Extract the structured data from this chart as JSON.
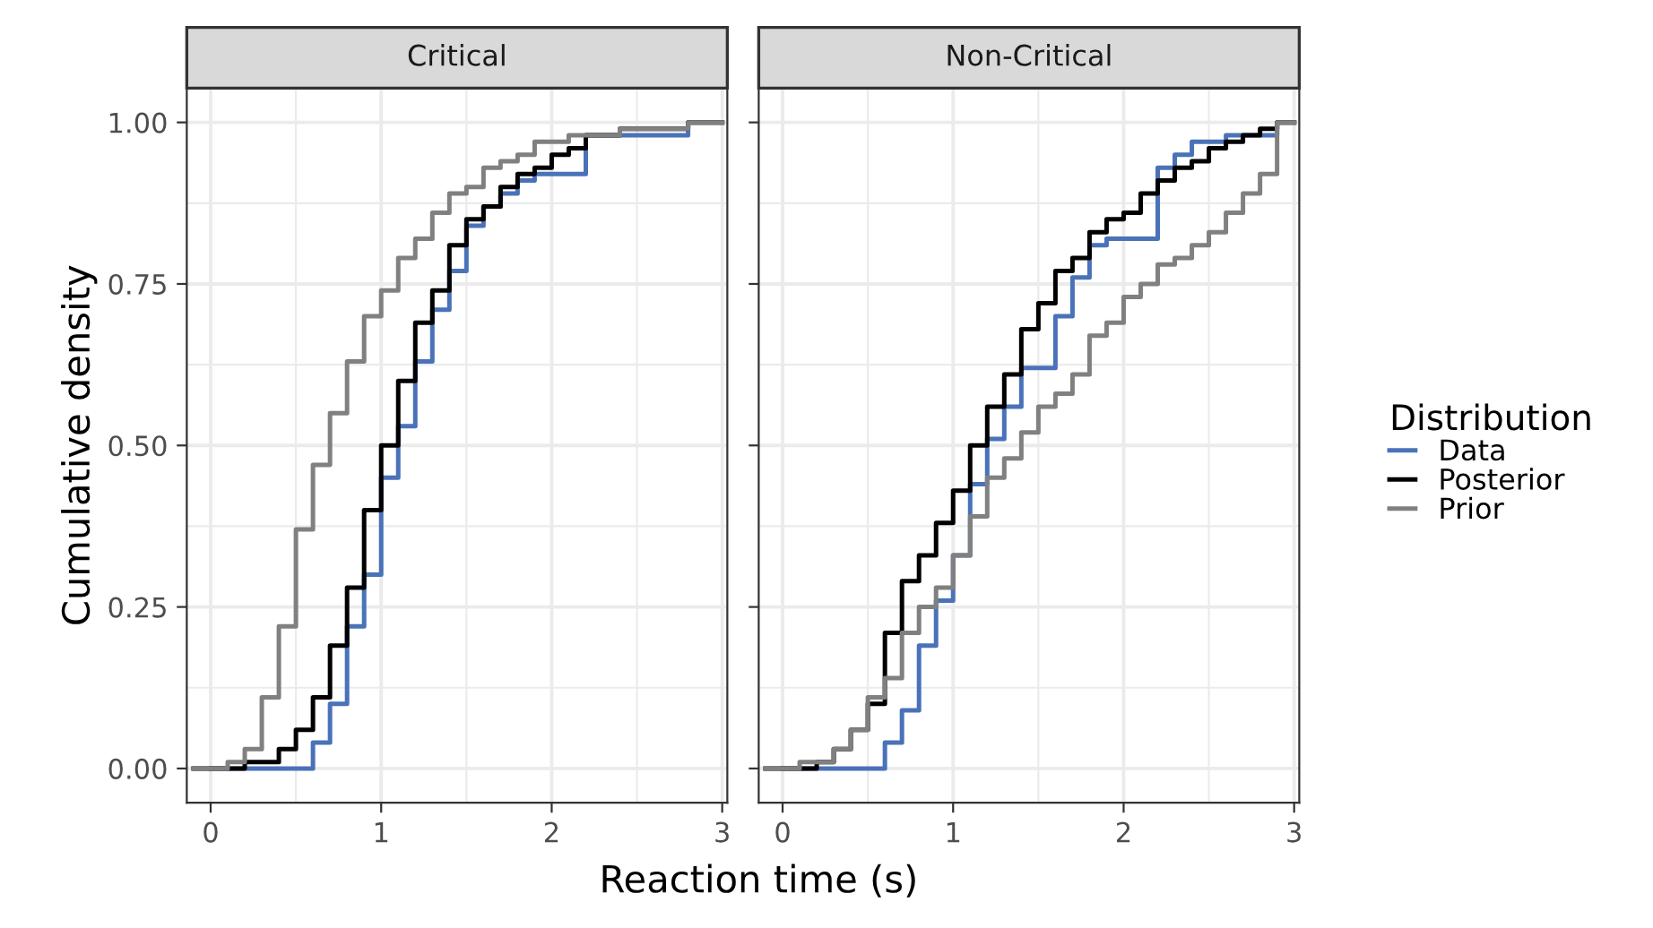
{
  "chart_data": [
    {
      "type": "step",
      "title": "Critical",
      "xlabel": "Reaction time (s)",
      "ylabel": "Cumulative density",
      "legend_title": "Distribution",
      "legend": "right",
      "grid": true,
      "line_style": "solid",
      "marker": "none",
      "x": [
        -0.1,
        0,
        0.1,
        0.2,
        0.3,
        0.4,
        0.5,
        0.6,
        0.7,
        0.8,
        0.9,
        1.0,
        1.1,
        1.2,
        1.3,
        1.4,
        1.5,
        1.6,
        1.7,
        1.8,
        1.9,
        2.0,
        2.1,
        2.2,
        2.3,
        2.4,
        2.5,
        2.6,
        2.7,
        2.8,
        2.9,
        3.0
      ],
      "xlim": [
        -0.14,
        3.03
      ],
      "xticks": [
        0,
        1,
        2,
        3
      ],
      "ylim": [
        -0.053,
        1.053
      ],
      "yticks": [
        {
          "value": 0,
          "label": "0.00"
        },
        {
          "value": 0.25,
          "label": "0.25"
        },
        {
          "value": 0.5,
          "label": "0.50"
        },
        {
          "value": 0.75,
          "label": "0.75"
        },
        {
          "value": 1,
          "label": "1.00"
        }
      ],
      "series": [
        {
          "name": "Data",
          "color": "#4a72b8",
          "values": [
            null,
            0,
            0,
            0,
            0,
            0,
            0,
            0.04,
            0.1,
            0.22,
            0.3,
            0.45,
            0.53,
            0.63,
            0.71,
            0.77,
            0.84,
            0.87,
            0.89,
            0.91,
            0.92,
            0.92,
            0.92,
            0.98,
            0.98,
            0.98,
            0.98,
            0.98,
            0.98,
            1.0,
            1.0,
            1.0
          ]
        },
        {
          "name": "Posterior",
          "color": "#000000",
          "values": [
            0,
            0,
            0,
            0.01,
            0.01,
            0.03,
            0.06,
            0.11,
            0.19,
            0.28,
            0.4,
            0.5,
            0.6,
            0.69,
            0.74,
            0.81,
            0.85,
            0.87,
            0.9,
            0.92,
            0.93,
            0.95,
            0.96,
            0.98,
            0.98,
            0.99,
            0.99,
            0.99,
            0.99,
            1.0,
            1.0,
            1.0
          ]
        },
        {
          "name": "Prior",
          "color": "#808080",
          "values": [
            0,
            0,
            0.01,
            0.03,
            0.11,
            0.22,
            0.37,
            0.47,
            0.55,
            0.63,
            0.7,
            0.74,
            0.79,
            0.82,
            0.86,
            0.89,
            0.9,
            0.93,
            0.94,
            0.95,
            0.97,
            0.97,
            0.98,
            0.98,
            0.98,
            0.99,
            0.99,
            0.99,
            0.99,
            1.0,
            1.0,
            1.0
          ]
        }
      ]
    },
    {
      "type": "step",
      "title": "Non-Critical",
      "grid": true,
      "line_style": "solid",
      "marker": "none",
      "tick_labels": "x",
      "x": [
        -0.1,
        0,
        0.1,
        0.2,
        0.3,
        0.4,
        0.5,
        0.6,
        0.7,
        0.8,
        0.9,
        1.0,
        1.1,
        1.2,
        1.3,
        1.4,
        1.5,
        1.6,
        1.7,
        1.8,
        1.9,
        2.0,
        2.1,
        2.2,
        2.3,
        2.4,
        2.5,
        2.6,
        2.7,
        2.8,
        2.9,
        3.0
      ],
      "xlim": [
        -0.14,
        3.03
      ],
      "xticks": [
        0,
        1,
        2,
        3
      ],
      "ylim": [
        -0.053,
        1.053
      ],
      "yticks": [
        {
          "value": 0,
          "label": null
        },
        {
          "value": 0.25,
          "label": null
        },
        {
          "value": 0.5,
          "label": null
        },
        {
          "value": 0.75,
          "label": null
        },
        {
          "value": 1,
          "label": null
        }
      ],
      "series": [
        {
          "color": "#4a72b8",
          "values": [
            null,
            0,
            0,
            0,
            0,
            0,
            0,
            0.04,
            0.09,
            0.19,
            0.26,
            0.33,
            0.44,
            0.51,
            0.56,
            0.62,
            0.62,
            0.7,
            0.76,
            0.81,
            0.82,
            0.82,
            0.82,
            0.93,
            0.95,
            0.97,
            0.97,
            0.98,
            0.98,
            0.98,
            1.0,
            1.0
          ]
        },
        {
          "color": "#000000",
          "values": [
            0,
            0,
            0,
            0.01,
            0.03,
            0.06,
            0.1,
            0.21,
            0.29,
            0.33,
            0.38,
            0.43,
            0.5,
            0.56,
            0.61,
            0.68,
            0.72,
            0.77,
            0.79,
            0.83,
            0.85,
            0.86,
            0.89,
            0.91,
            0.93,
            0.94,
            0.96,
            0.97,
            0.98,
            0.99,
            1.0,
            1.0
          ]
        },
        {
          "color": "#808080",
          "values": [
            0,
            0,
            0.01,
            0.01,
            0.03,
            0.06,
            0.11,
            0.14,
            0.21,
            0.25,
            0.28,
            0.33,
            0.39,
            0.45,
            0.48,
            0.52,
            0.56,
            0.58,
            0.61,
            0.67,
            0.69,
            0.73,
            0.75,
            0.78,
            0.79,
            0.81,
            0.83,
            0.86,
            0.89,
            0.92,
            1.0,
            1.0
          ]
        }
      ]
    }
  ]
}
